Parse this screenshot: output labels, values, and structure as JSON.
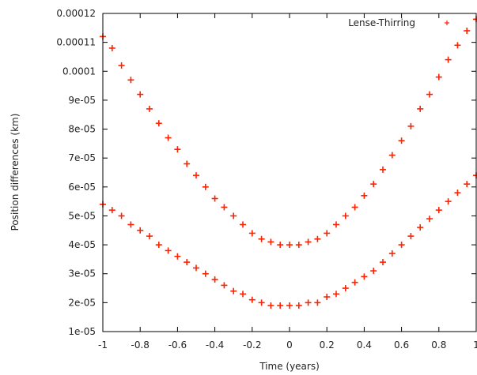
{
  "chart_data": {
    "type": "scatter",
    "xlabel": "Time (years)",
    "ylabel": "Position differences (km)",
    "xlim": [
      -1,
      1
    ],
    "ylim": [
      1e-05,
      0.00012
    ],
    "xticks": [
      "-1",
      "-0.8",
      "-0.6",
      "-0.4",
      "-0.2",
      "0",
      "0.2",
      "0.4",
      "0.6",
      "0.8",
      "1"
    ],
    "yticks": [
      "1e-05",
      "2e-05",
      "3e-05",
      "4e-05",
      "5e-05",
      "6e-05",
      "7e-05",
      "8e-05",
      "9e-05",
      "0.0001",
      "0.00011",
      "0.00012"
    ],
    "grid": false,
    "legend_position": "top-right",
    "marker": "+",
    "series": [
      {
        "name": "Lense-Thirring",
        "color": "#ff2200",
        "points": [
          [
            -1.0,
            0.000112
          ],
          [
            -1.0,
            5.4e-05
          ],
          [
            -0.95,
            0.000108
          ],
          [
            -0.95,
            5.2e-05
          ],
          [
            -0.9,
            0.000102
          ],
          [
            -0.9,
            5e-05
          ],
          [
            -0.85,
            9.7e-05
          ],
          [
            -0.85,
            4.7e-05
          ],
          [
            -0.8,
            9.2e-05
          ],
          [
            -0.8,
            4.5e-05
          ],
          [
            -0.75,
            8.7e-05
          ],
          [
            -0.75,
            4.3e-05
          ],
          [
            -0.7,
            8.2e-05
          ],
          [
            -0.7,
            4e-05
          ],
          [
            -0.65,
            7.7e-05
          ],
          [
            -0.65,
            3.8e-05
          ],
          [
            -0.6,
            7.3e-05
          ],
          [
            -0.6,
            3.6e-05
          ],
          [
            -0.55,
            6.8e-05
          ],
          [
            -0.55,
            3.4e-05
          ],
          [
            -0.5,
            6.4e-05
          ],
          [
            -0.5,
            3.2e-05
          ],
          [
            -0.45,
            6e-05
          ],
          [
            -0.45,
            3e-05
          ],
          [
            -0.4,
            5.6e-05
          ],
          [
            -0.4,
            2.8e-05
          ],
          [
            -0.35,
            5.3e-05
          ],
          [
            -0.35,
            2.6e-05
          ],
          [
            -0.3,
            5e-05
          ],
          [
            -0.3,
            2.4e-05
          ],
          [
            -0.25,
            4.7e-05
          ],
          [
            -0.25,
            2.3e-05
          ],
          [
            -0.2,
            4.4e-05
          ],
          [
            -0.2,
            2.1e-05
          ],
          [
            -0.15,
            4.2e-05
          ],
          [
            -0.15,
            2e-05
          ],
          [
            -0.1,
            4.1e-05
          ],
          [
            -0.1,
            1.9e-05
          ],
          [
            -0.05,
            4e-05
          ],
          [
            -0.05,
            1.9e-05
          ],
          [
            0.0,
            4e-05
          ],
          [
            0.0,
            1.9e-05
          ],
          [
            0.05,
            4e-05
          ],
          [
            0.05,
            1.9e-05
          ],
          [
            0.1,
            4.1e-05
          ],
          [
            0.1,
            2e-05
          ],
          [
            0.15,
            4.2e-05
          ],
          [
            0.15,
            2e-05
          ],
          [
            0.2,
            4.4e-05
          ],
          [
            0.2,
            2.2e-05
          ],
          [
            0.25,
            4.7e-05
          ],
          [
            0.25,
            2.3e-05
          ],
          [
            0.3,
            5e-05
          ],
          [
            0.3,
            2.5e-05
          ],
          [
            0.35,
            5.3e-05
          ],
          [
            0.35,
            2.7e-05
          ],
          [
            0.4,
            5.7e-05
          ],
          [
            0.4,
            2.9e-05
          ],
          [
            0.45,
            6.1e-05
          ],
          [
            0.45,
            3.1e-05
          ],
          [
            0.5,
            6.6e-05
          ],
          [
            0.5,
            3.4e-05
          ],
          [
            0.55,
            7.1e-05
          ],
          [
            0.55,
            3.7e-05
          ],
          [
            0.6,
            7.6e-05
          ],
          [
            0.6,
            4e-05
          ],
          [
            0.65,
            8.1e-05
          ],
          [
            0.65,
            4.3e-05
          ],
          [
            0.7,
            8.7e-05
          ],
          [
            0.7,
            4.6e-05
          ],
          [
            0.75,
            9.2e-05
          ],
          [
            0.75,
            4.9e-05
          ],
          [
            0.8,
            9.8e-05
          ],
          [
            0.8,
            5.2e-05
          ],
          [
            0.85,
            0.000104
          ],
          [
            0.85,
            5.5e-05
          ],
          [
            0.9,
            0.000109
          ],
          [
            0.9,
            5.8e-05
          ],
          [
            0.95,
            0.000114
          ],
          [
            0.95,
            6.1e-05
          ],
          [
            1.0,
            0.000118
          ],
          [
            1.0,
            6.4e-05
          ]
        ]
      }
    ]
  }
}
